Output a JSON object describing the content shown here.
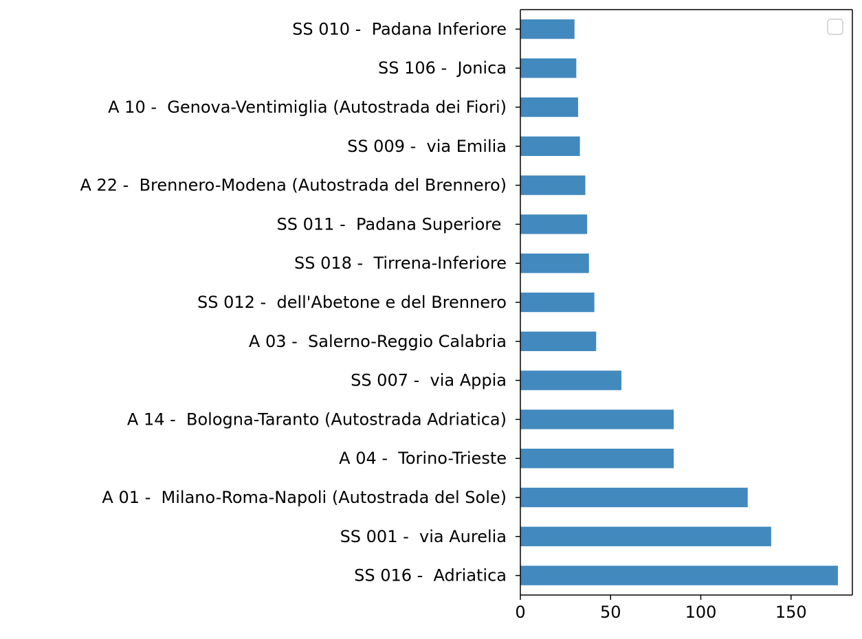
{
  "chart_data": {
    "type": "bar",
    "orientation": "horizontal",
    "title": "",
    "xlabel": "",
    "ylabel": "",
    "categories": [
      "SS 016 -  Adriatica",
      "SS 001 -  via Aurelia",
      "A 01 -  Milano-Roma-Napoli (Autostrada del Sole)",
      "A 04 -  Torino-Trieste",
      "A 14 -  Bologna-Taranto (Autostrada Adriatica)",
      "SS 007 -  via Appia",
      "A 03 -  Salerno-Reggio Calabria",
      "SS 012 -  dell'Abetone e del Brennero",
      "SS 018 -  Tirrena-Inferiore",
      "SS 011 -  Padana Superiore ",
      "A 22 -  Brennero-Modena (Autostrada del Brennero)",
      "SS 009 -  via Emilia",
      "A 10 -  Genova-Ventimiglia (Autostrada dei Fiori)",
      "SS 106 -  Jonica",
      "SS 010 -  Padana Inferiore"
    ],
    "values": [
      176,
      139,
      126,
      85,
      85,
      56,
      42,
      41,
      38,
      37,
      36,
      33,
      32,
      31,
      30
    ],
    "xlim": [
      0,
      184
    ],
    "xticks": [
      "0",
      "50",
      "100",
      "150"
    ],
    "xtick_values": [
      0,
      50,
      100,
      150
    ],
    "bar_color": "#4289be",
    "legend": "top-right, empty",
    "grid": false
  }
}
